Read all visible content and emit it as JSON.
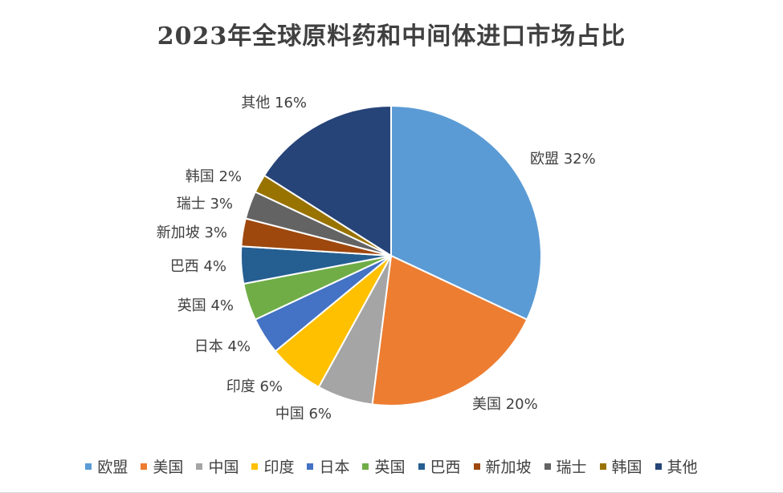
{
  "chart_data": {
    "type": "pie",
    "title": "2023年全球原料药和中间体进口市场占比",
    "categories": [
      "欧盟",
      "美国",
      "中国",
      "印度",
      "日本",
      "英国",
      "巴西",
      "新加坡",
      "瑞士",
      "韩国",
      "其他"
    ],
    "values": [
      32,
      20,
      6,
      6,
      4,
      4,
      4,
      3,
      3,
      2,
      16
    ],
    "data_labels": [
      "欧盟 32%",
      "美国 20%",
      "中国 6%",
      "印度 6%",
      "日本 4%",
      "英国 4%",
      "巴西 4%",
      "新加坡 3%",
      "瑞士 3%",
      "韩国 2%",
      "其他 16%"
    ],
    "colors": [
      "#5b9bd5",
      "#ed7d31",
      "#a5a5a5",
      "#ffc000",
      "#4472c4",
      "#70ad47",
      "#255e91",
      "#9e480e",
      "#636363",
      "#997300",
      "#264478"
    ],
    "legend_position": "bottom"
  }
}
